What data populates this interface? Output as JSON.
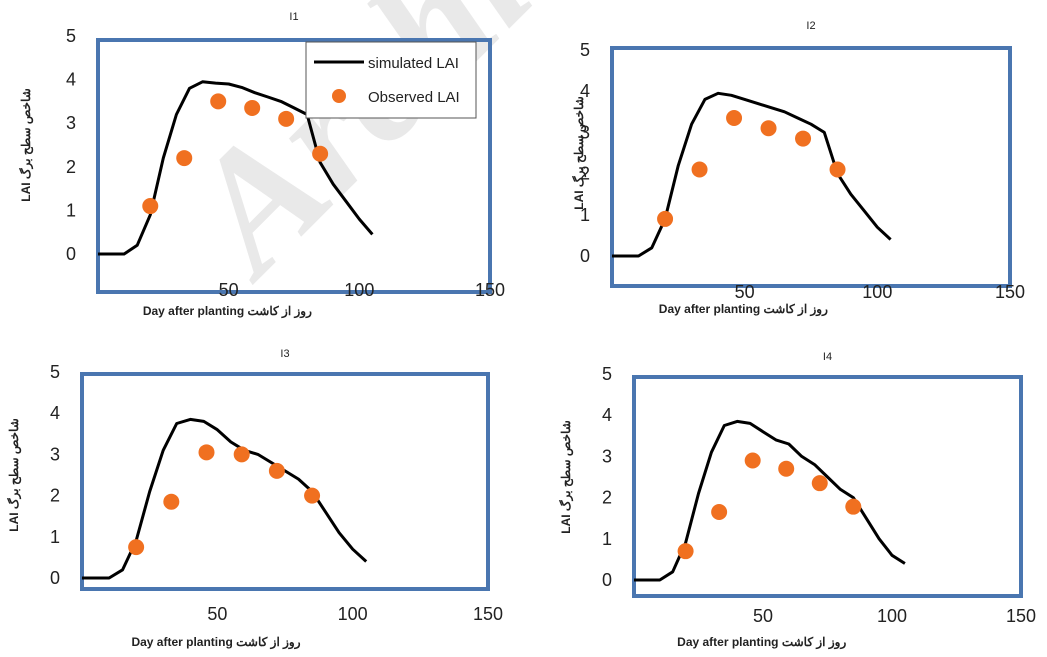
{
  "watermark": "Archive of SID",
  "chart_data": [
    {
      "type": "line",
      "title": "I1",
      "xlabel": "Day after planting روز از کاشت",
      "ylabel": "LAI شاخص سطح برگ",
      "xlim": [
        0,
        150
      ],
      "ylim": [
        0,
        5
      ],
      "xticks": [
        50,
        100,
        150
      ],
      "yticks": [
        0,
        1,
        2,
        3,
        4,
        5
      ],
      "legend": "top-right",
      "series": [
        {
          "name": "simulated LAI",
          "kind": "line",
          "color": "#000000",
          "x": [
            0,
            10,
            15,
            20,
            25,
            30,
            35,
            40,
            45,
            50,
            55,
            60,
            65,
            70,
            75,
            80,
            85,
            90,
            95,
            100,
            105
          ],
          "y": [
            0,
            0,
            0.2,
            0.9,
            2.2,
            3.2,
            3.8,
            3.95,
            3.92,
            3.9,
            3.82,
            3.7,
            3.6,
            3.5,
            3.35,
            3.2,
            2.1,
            1.6,
            1.2,
            0.8,
            0.45
          ]
        },
        {
          "name": "Observed LAI",
          "kind": "scatter",
          "color": "#F07020",
          "x": [
            20,
            33,
            46,
            59,
            72,
            85
          ],
          "y": [
            1.1,
            2.2,
            3.5,
            3.35,
            3.1,
            2.3
          ]
        }
      ]
    },
    {
      "type": "line",
      "title": "I2",
      "xlabel": "Day after planting روز از کاشت",
      "ylabel": "LAI شاخص سطح برگ",
      "xlim": [
        0,
        150
      ],
      "ylim": [
        0,
        5
      ],
      "xticks": [
        50,
        100,
        150
      ],
      "yticks": [
        0,
        1,
        2,
        3,
        4,
        5
      ],
      "series": [
        {
          "kind": "line",
          "color": "#000000",
          "x": [
            0,
            10,
            15,
            20,
            25,
            30,
            35,
            40,
            45,
            50,
            55,
            60,
            65,
            70,
            75,
            80,
            85,
            90,
            95,
            100,
            105
          ],
          "y": [
            0,
            0,
            0.2,
            0.9,
            2.2,
            3.2,
            3.8,
            3.95,
            3.9,
            3.8,
            3.7,
            3.6,
            3.5,
            3.35,
            3.2,
            3.0,
            2.0,
            1.5,
            1.1,
            0.7,
            0.4
          ]
        },
        {
          "kind": "scatter",
          "color": "#F07020",
          "x": [
            20,
            33,
            46,
            59,
            72,
            85
          ],
          "y": [
            0.9,
            2.1,
            3.35,
            3.1,
            2.85,
            2.1
          ]
        }
      ]
    },
    {
      "type": "line",
      "title": "I3",
      "xlabel": "Day after planting روز از کاشت",
      "ylabel": "LAI شاخص سطح برگ",
      "xlim": [
        0,
        150
      ],
      "ylim": [
        0,
        5
      ],
      "xticks": [
        50,
        100,
        150
      ],
      "yticks": [
        0,
        1,
        2,
        3,
        4,
        5
      ],
      "series": [
        {
          "kind": "line",
          "color": "#000000",
          "x": [
            0,
            10,
            15,
            20,
            25,
            30,
            35,
            40,
            45,
            50,
            55,
            60,
            65,
            70,
            75,
            80,
            85,
            90,
            95,
            100,
            105
          ],
          "y": [
            0,
            0,
            0.2,
            0.9,
            2.1,
            3.1,
            3.75,
            3.85,
            3.8,
            3.6,
            3.3,
            3.1,
            3.0,
            2.8,
            2.6,
            2.4,
            2.1,
            1.6,
            1.1,
            0.7,
            0.4
          ]
        },
        {
          "kind": "scatter",
          "color": "#F07020",
          "x": [
            20,
            33,
            46,
            59,
            72,
            85
          ],
          "y": [
            0.75,
            1.85,
            3.05,
            3.0,
            2.6,
            2.0
          ]
        }
      ]
    },
    {
      "type": "line",
      "title": "I4",
      "xlabel": "Day after planting روز از کاشت",
      "ylabel": "LAI شاخص سطح برگ",
      "xlim": [
        0,
        150
      ],
      "ylim": [
        0,
        5
      ],
      "xticks": [
        50,
        100,
        150
      ],
      "yticks": [
        0,
        1,
        2,
        3,
        4,
        5
      ],
      "series": [
        {
          "kind": "line",
          "color": "#000000",
          "x": [
            0,
            10,
            15,
            20,
            25,
            30,
            35,
            40,
            45,
            50,
            55,
            60,
            65,
            70,
            75,
            80,
            85,
            90,
            95,
            100,
            105
          ],
          "y": [
            0,
            0,
            0.2,
            0.9,
            2.1,
            3.1,
            3.75,
            3.85,
            3.8,
            3.6,
            3.4,
            3.3,
            3.0,
            2.8,
            2.5,
            2.2,
            2.0,
            1.5,
            1.0,
            0.6,
            0.4
          ]
        },
        {
          "kind": "scatter",
          "color": "#F07020",
          "x": [
            20,
            33,
            46,
            59,
            72,
            85
          ],
          "y": [
            0.7,
            1.65,
            2.9,
            2.7,
            2.35,
            1.78
          ]
        }
      ]
    }
  ]
}
